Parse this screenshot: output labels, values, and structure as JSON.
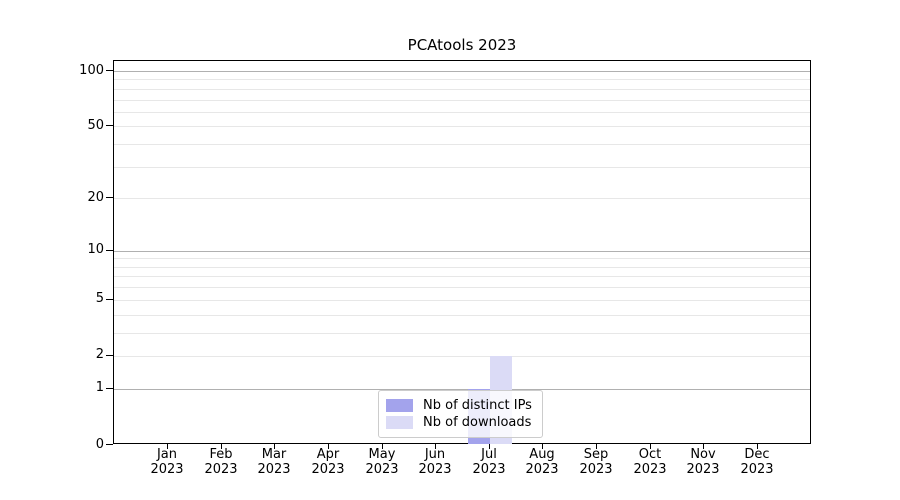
{
  "figure": {
    "title": "PCAtools 2023"
  },
  "chart_data": {
    "type": "bar",
    "title": "PCAtools 2023",
    "categories": [
      "Jan 2023",
      "Feb 2023",
      "Mar 2023",
      "Apr 2023",
      "May 2023",
      "Jun 2023",
      "Jul 2023",
      "Aug 2023",
      "Sep 2023",
      "Oct 2023",
      "Nov 2023",
      "Dec 2023"
    ],
    "series": [
      {
        "name": "Nb of distinct IPs",
        "color": "#a3a3ec",
        "values": [
          0,
          0,
          0,
          0,
          0,
          0,
          1,
          0,
          0,
          0,
          0,
          0
        ]
      },
      {
        "name": "Nb of downloads",
        "color": "#dbdbf6",
        "values": [
          0,
          0,
          0,
          0,
          0,
          0,
          2,
          0,
          0,
          0,
          0,
          0
        ]
      }
    ],
    "xlabel": "",
    "ylabel": "",
    "y_scale": "log1p",
    "ylim": [
      0,
      100
    ],
    "y_ticks_major": [
      0,
      1,
      2,
      5,
      10,
      20,
      50,
      100
    ],
    "y_ticks_minor": [
      3,
      4,
      6,
      7,
      8,
      9,
      30,
      40,
      60,
      70,
      80,
      90
    ],
    "y_decade_ticks": [
      1,
      10,
      100
    ],
    "grid": true,
    "legend_position": "lower center"
  },
  "colors": {
    "grid_decade": "#b0b0b0",
    "grid_minor": "#e7e7e7",
    "spine": "#000000"
  }
}
